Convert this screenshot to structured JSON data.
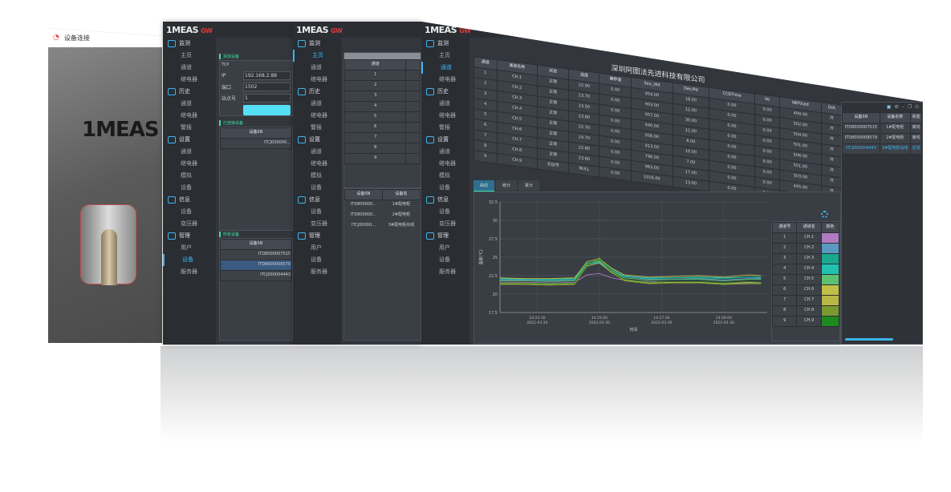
{
  "sidebar": [
    {
      "label": "监测",
      "group": true
    },
    {
      "label": "主页"
    },
    {
      "label": "通道"
    },
    {
      "label": "继电器"
    },
    {
      "label": "历史",
      "group": true
    },
    {
      "label": "通道"
    },
    {
      "label": "继电器"
    },
    {
      "label": "警报"
    },
    {
      "label": "设置",
      "group": true
    },
    {
      "label": "通道"
    },
    {
      "label": "继电器"
    },
    {
      "label": "模拟"
    },
    {
      "label": "设备"
    },
    {
      "label": "信息",
      "group": true
    },
    {
      "label": "设备"
    },
    {
      "label": "变压器"
    },
    {
      "label": "管理",
      "group": true
    },
    {
      "label": "用户"
    },
    {
      "label": "设备"
    },
    {
      "label": "服务器"
    }
  ],
  "logo": {
    "text": "1MEAS",
    "mark": "GW"
  },
  "login": {
    "title": "设备连接",
    "brand": "1MEAS"
  },
  "add_window": {
    "section_add": "添加设备",
    "group": "TCP",
    "ip_label": "IP",
    "ip": "192.168.2.88",
    "port_label": "端口",
    "port": "1502",
    "station_label": "站点号",
    "station": "1",
    "section_connected": "已连接设备",
    "connected_header": "设备SN",
    "connected": [
      "ITCJ000000..."
    ],
    "section_all": "所有设备",
    "all_header": "设备SN",
    "all": [
      "ITD8000007515",
      "ITD8000008579",
      "ITCJ000004443"
    ]
  },
  "home_window": {
    "header": "通道",
    "channels": [
      "1",
      "2",
      "3",
      "4",
      "5",
      "6",
      "7",
      "8",
      "9"
    ],
    "dev_headers": [
      "设备SN",
      "设备名"
    ],
    "devices": [
      [
        "ITD800000...",
        "1#配电柜"
      ],
      [
        "ITD800000...",
        "2#配电柜"
      ],
      [
        "ITCJ00000...",
        "3#配电柜出线"
      ]
    ]
  },
  "main": {
    "company": "深圳阿图法先进科技有限公司",
    "headers": [
      "通道",
      "通道名称",
      "状态",
      "温度",
      "偏移值",
      "Sou_/Ad",
      "Dec/Pd",
      "CCDTime",
      "Vo",
      "NEP/Led",
      "D/A"
    ],
    "rows": [
      [
        "1",
        "CH.1",
        "正常",
        "22.90",
        "0.00",
        "954.00",
        "18.00",
        "0.00",
        "0.00",
        "499.00",
        "开"
      ],
      [
        "2",
        "CH.2",
        "正常",
        "23.70",
        "0.00",
        "903.00",
        "12.00",
        "0.00",
        "0.00",
        "502.00",
        "开"
      ],
      [
        "3",
        "CH.3",
        "正常",
        "23.50",
        "0.00",
        "957.00",
        "30.00",
        "0.00",
        "0.00",
        "504.00",
        "开"
      ],
      [
        "4",
        "CH.4",
        "正常",
        "23.80",
        "0.00",
        "940.00",
        "12.00",
        "0.00",
        "0.00",
        "501.00",
        "开"
      ],
      [
        "5",
        "CH.5",
        "正常",
        "22.70",
        "0.00",
        "956.00",
        "6.00",
        "0.00",
        "0.00",
        "506.00",
        "开"
      ],
      [
        "6",
        "CH.6",
        "正常",
        "24.70",
        "0.00",
        "913.00",
        "19.00",
        "0.00",
        "0.00",
        "501.00",
        "开"
      ],
      [
        "7",
        "CH.7",
        "正常",
        "22.80",
        "0.00",
        "796.00",
        "7.00",
        "0.00",
        "0.00",
        "503.00",
        "开"
      ],
      [
        "8",
        "CH.8",
        "正常",
        "23.60",
        "0.00",
        "963.00",
        "17.00",
        "0.00",
        "0.00",
        "495.00",
        "开"
      ],
      [
        "9",
        "CH.9",
        "无信号",
        "NULL",
        "0.00",
        "1016.00",
        "13.00",
        "0.00",
        "0.00",
        "495.00",
        "开"
      ]
    ],
    "tabs": [
      "曲线",
      "统计",
      "累计"
    ],
    "legend_headers": [
      "通道号",
      "通道名",
      "颜色"
    ],
    "right_headers": [
      "设备SN",
      "设备名称",
      "状态"
    ],
    "right_rows": [
      [
        "ITD8000007515",
        "1#配电柜",
        "离线"
      ],
      [
        "ITD8000008579",
        "2#配电柜",
        "离线"
      ],
      [
        "ITCJ000004443",
        "3#配电柜出线",
        "在线"
      ]
    ]
  },
  "chart_data": {
    "type": "line",
    "ylabel": "温度(℃)",
    "xlabel": "时间",
    "ylim": [
      17.5,
      32.5
    ],
    "yticks": [
      "32.5",
      "30",
      "27.5",
      "25",
      "22.5",
      "20",
      "17.5"
    ],
    "xticks": [
      [
        "14:22:30",
        "2022-03-30"
      ],
      [
        "14:25:00",
        "2022-03-30"
      ],
      [
        "14:27:30",
        "2022-03-30"
      ],
      [
        "14:30:00",
        "2022-03-30"
      ]
    ],
    "x": [
      "14:21:00",
      "14:22:00",
      "14:23:00",
      "14:24:00",
      "14:24:30",
      "14:25:00",
      "14:25:30",
      "14:26:00",
      "14:27:00",
      "14:28:00",
      "14:29:00",
      "14:30:00",
      "14:31:00",
      "14:31:30"
    ],
    "series": [
      {
        "name": "CH.1",
        "color": "#b07ac0",
        "values": [
          21.6,
          21.6,
          21.5,
          21.6,
          22.6,
          22.8,
          22.2,
          21.9,
          21.7,
          21.6,
          21.6,
          21.4,
          21.5,
          21.5
        ]
      },
      {
        "name": "CH.2",
        "color": "#5b9ac0",
        "values": [
          21.9,
          21.9,
          21.8,
          21.9,
          24.0,
          24.4,
          23.2,
          22.4,
          22.0,
          22.0,
          22.1,
          21.9,
          22.1,
          22.1
        ]
      },
      {
        "name": "CH.3",
        "color": "#1aa890",
        "values": [
          22.0,
          22.0,
          21.9,
          22.0,
          24.2,
          24.6,
          23.4,
          22.5,
          22.1,
          22.2,
          22.2,
          22.1,
          22.3,
          22.3
        ]
      },
      {
        "name": "CH.4",
        "color": "#22c0b0",
        "values": [
          22.1,
          22.0,
          22.0,
          22.1,
          24.0,
          24.3,
          23.1,
          22.4,
          22.2,
          22.2,
          22.3,
          22.2,
          22.3,
          22.2
        ]
      },
      {
        "name": "CH.5",
        "color": "#5cc070",
        "values": [
          21.8,
          21.8,
          21.7,
          21.8,
          24.1,
          24.5,
          23.2,
          22.2,
          21.9,
          22.0,
          22.0,
          21.8,
          22.0,
          22.0
        ]
      },
      {
        "name": "CH.6",
        "color": "#c0c048",
        "values": [
          22.2,
          22.1,
          22.1,
          22.2,
          24.4,
          24.8,
          23.5,
          22.6,
          22.3,
          22.4,
          22.5,
          22.3,
          22.6,
          22.5
        ]
      },
      {
        "name": "CH.7",
        "color": "#b8b848",
        "values": [
          21.4,
          21.4,
          21.3,
          21.4,
          23.8,
          24.2,
          22.9,
          21.9,
          21.5,
          21.6,
          21.6,
          21.4,
          21.6,
          21.5
        ]
      },
      {
        "name": "CH.8",
        "color": "#7a9a30",
        "values": [
          21.3,
          21.3,
          21.2,
          21.3,
          23.9,
          24.9,
          23.0,
          21.8,
          21.4,
          21.5,
          21.5,
          21.3,
          21.4,
          21.4
        ]
      },
      {
        "name": "CH.9",
        "color": "#1e8a1e",
        "values": [
          21.5,
          21.5,
          21.4,
          21.5,
          24.0,
          24.7,
          23.1,
          22.0,
          21.6,
          21.7,
          21.7,
          21.5,
          21.7,
          21.6
        ]
      }
    ]
  }
}
